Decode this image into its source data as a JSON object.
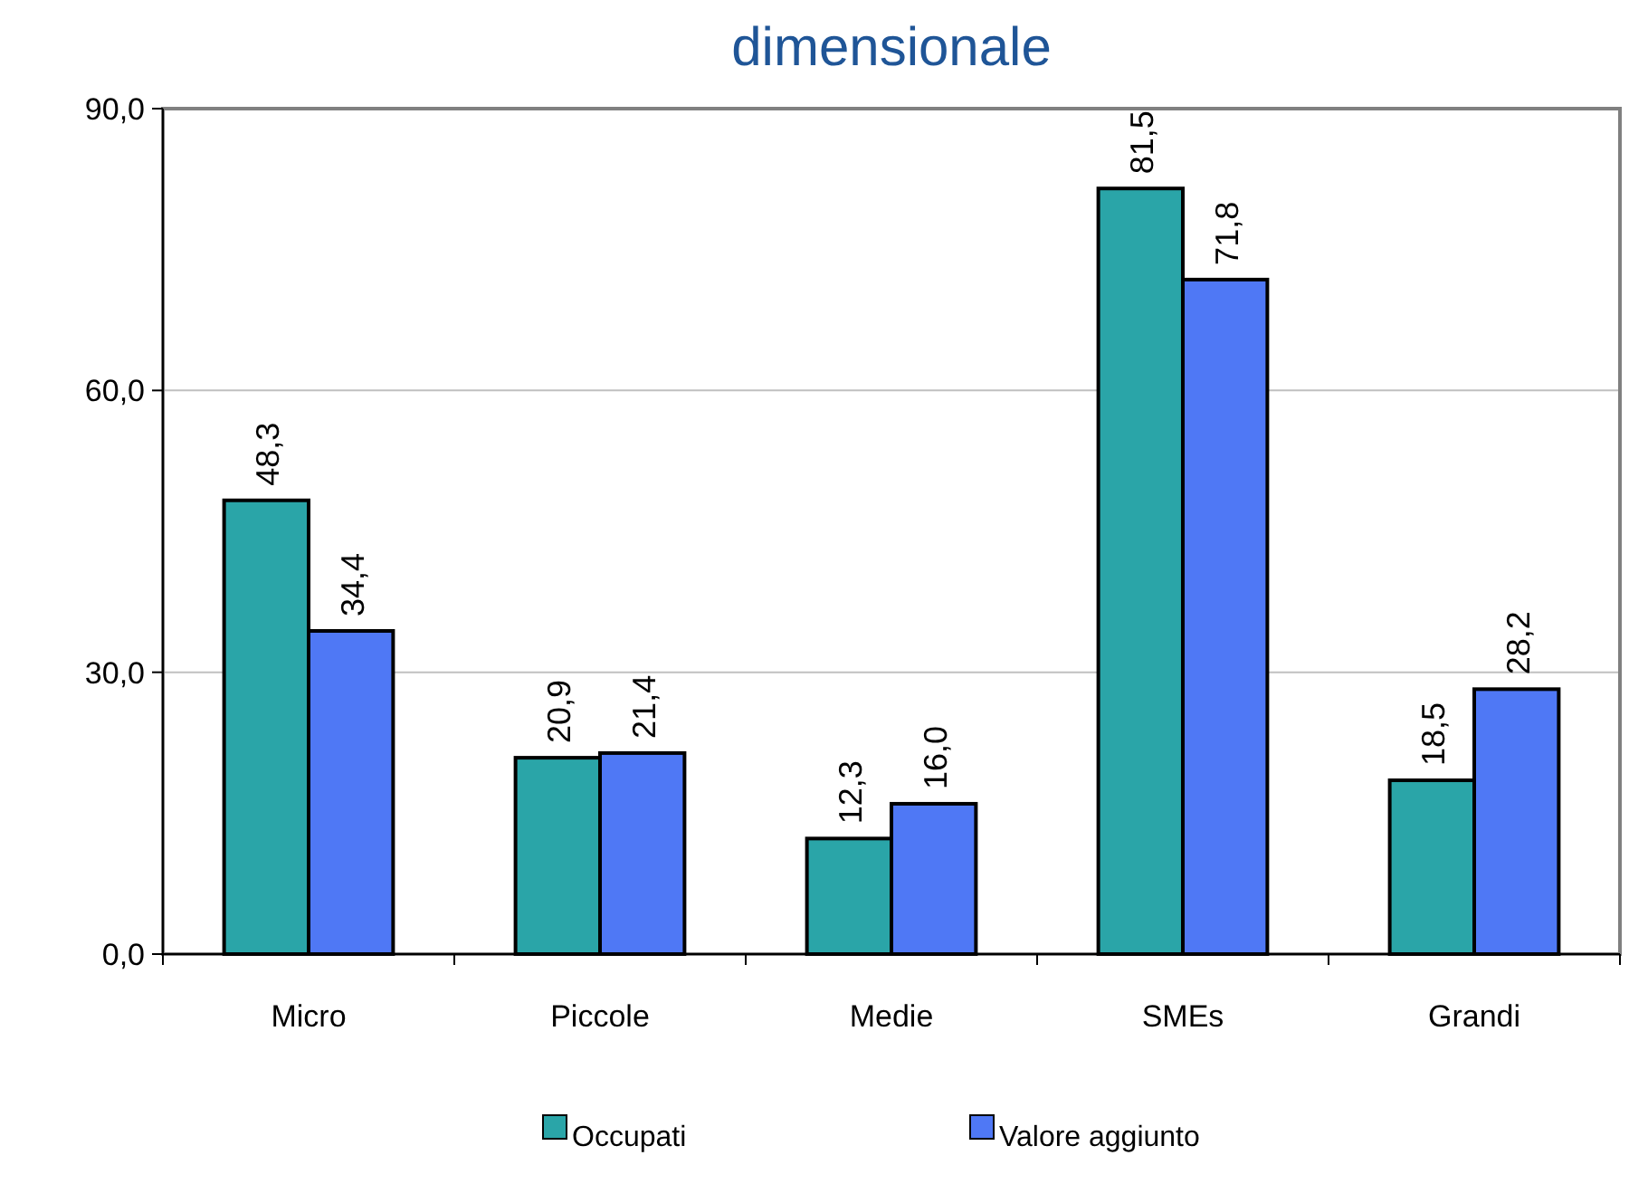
{
  "chart_data": {
    "type": "bar",
    "title": "dimensionale",
    "categories": [
      "Micro",
      "Piccole",
      "Medie",
      "SMEs",
      "Grandi"
    ],
    "series": [
      {
        "name": "Occupati",
        "color": "#2aa5a8",
        "values": [
          48.3,
          20.9,
          12.3,
          81.5,
          18.5
        ],
        "value_labels": [
          "48,3",
          "20,9",
          "12,3",
          "81,5",
          "18,5"
        ]
      },
      {
        "name": "Valore aggiunto",
        "color": "#4f78f5",
        "values": [
          34.4,
          21.4,
          16.0,
          71.8,
          28.2
        ],
        "value_labels": [
          "34,4",
          "21,4",
          "16,0",
          "71,8",
          "28,2"
        ]
      }
    ],
    "ylim": [
      0,
      90
    ],
    "yticks": [
      {
        "value": 0,
        "label": "0,0"
      },
      {
        "value": 30,
        "label": "30,0"
      },
      {
        "value": 60,
        "label": "60,0"
      },
      {
        "value": 90,
        "label": "90,0"
      }
    ],
    "grid": "y",
    "legend": "bottom"
  }
}
